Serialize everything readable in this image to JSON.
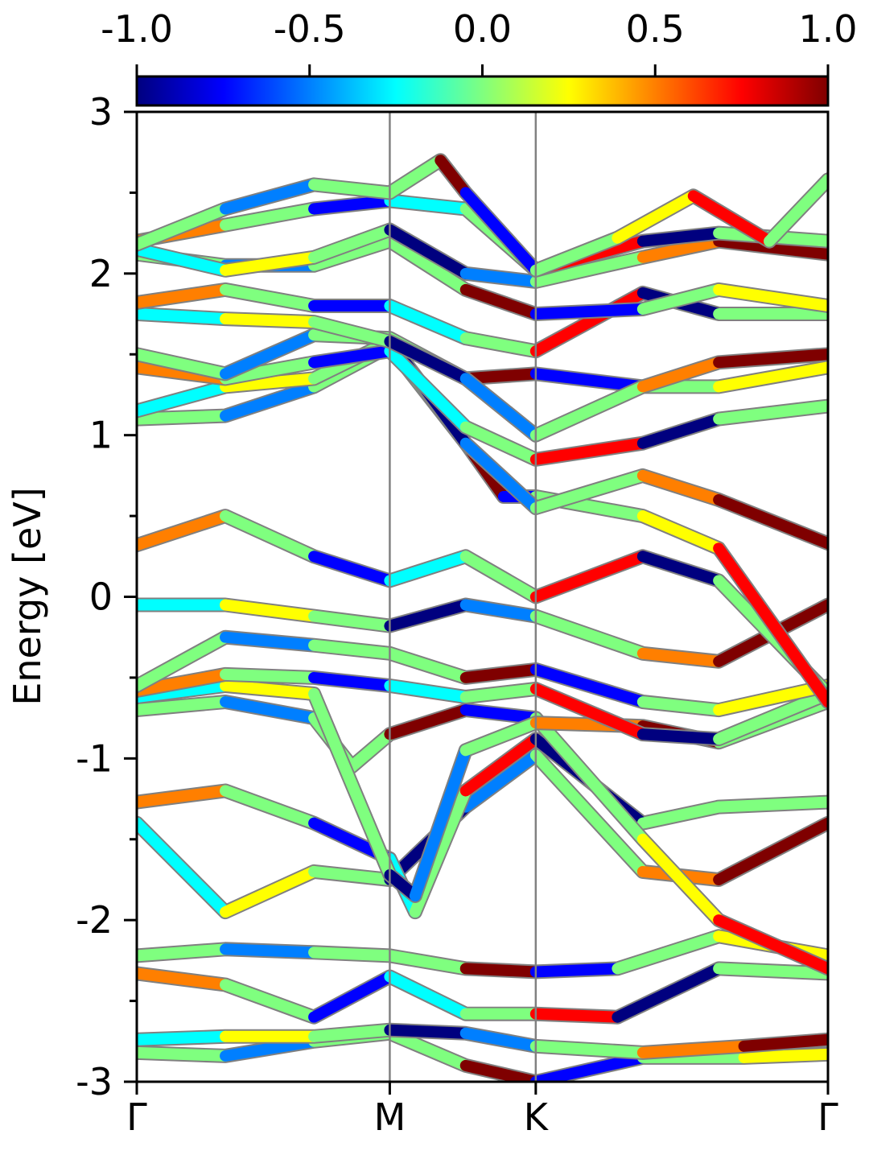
{
  "chart_data": {
    "type": "line",
    "title": "",
    "xlabel": "",
    "ylabel": "Energy [eV]",
    "ylim": [
      -3,
      3
    ],
    "y_ticks": [
      "-3",
      "-2",
      "-1",
      "0",
      "1",
      "2",
      "3"
    ],
    "x_ticks": [
      "Γ",
      "M",
      "K",
      "Γ"
    ],
    "x_tick_positions": [
      0,
      1,
      1.577,
      2.732
    ],
    "colorbar": {
      "range": [
        -1.0,
        1.0
      ],
      "ticks": [
        "-1.0",
        "-0.5",
        "0.0",
        "0.5",
        "1.0"
      ],
      "colormap": "jet",
      "colors": [
        "#00007f",
        "#0000ff",
        "#007fff",
        "#00ffff",
        "#7fff7f",
        "#ffff00",
        "#ff7f00",
        "#ff0000",
        "#7f0000"
      ]
    },
    "band_outline_color": "#808080",
    "series": [
      {
        "x": [
          0,
          0.35,
          0.7,
          1.0,
          1.3,
          1.577,
          2.0,
          2.4,
          2.732
        ],
        "y": [
          -2.82,
          -2.84,
          -2.75,
          -2.7,
          -2.9,
          -3.0,
          -2.85,
          -2.85,
          -2.83
        ]
      },
      {
        "x": [
          0,
          0.35,
          0.7,
          1.0,
          1.3,
          1.577,
          2.0,
          2.4,
          2.732
        ],
        "y": [
          -2.74,
          -2.72,
          -2.72,
          -2.68,
          -2.7,
          -2.78,
          -2.82,
          -2.78,
          -2.74
        ]
      },
      {
        "x": [
          0,
          0.35,
          0.7,
          1.0,
          1.3,
          1.577,
          1.9,
          2.3,
          2.732
        ],
        "y": [
          -2.33,
          -2.4,
          -2.6,
          -2.35,
          -2.58,
          -2.58,
          -2.6,
          -2.3,
          -2.33
        ]
      },
      {
        "x": [
          0,
          0.35,
          0.7,
          1.0,
          1.3,
          1.577,
          1.9,
          2.3,
          2.732
        ],
        "y": [
          -2.22,
          -2.18,
          -2.2,
          -2.22,
          -2.3,
          -2.32,
          -2.3,
          -2.1,
          -2.22
        ]
      },
      {
        "x": [
          0,
          0.35,
          0.7,
          1.0,
          1.3,
          1.577,
          2.0,
          2.3,
          2.732
        ],
        "y": [
          -1.4,
          -1.95,
          -1.7,
          -1.75,
          -1.3,
          -0.98,
          -1.7,
          -1.75,
          -1.4
        ]
      },
      {
        "x": [
          0,
          0.35,
          0.7,
          1.0,
          1.1,
          1.3,
          1.577,
          2.0,
          2.3,
          2.732
        ],
        "y": [
          -1.27,
          -1.2,
          -1.4,
          -1.62,
          -1.95,
          -1.2,
          -0.88,
          -1.4,
          -1.3,
          -1.27
        ]
      },
      {
        "x": [
          0,
          0.35,
          0.7,
          0.85,
          1.0,
          1.3,
          1.577,
          2.0,
          2.3,
          2.732
        ],
        "y": [
          -0.7,
          -0.65,
          -0.75,
          -1.05,
          -0.85,
          -0.7,
          -0.75,
          -1.5,
          -2.0,
          -2.3
        ]
      },
      {
        "x": [
          0,
          0.35,
          0.7,
          1.0,
          1.1,
          1.3,
          1.577,
          2.0,
          2.3,
          2.732
        ],
        "y": [
          -0.62,
          -0.55,
          -0.6,
          -1.72,
          -1.85,
          -0.95,
          -0.78,
          -0.8,
          -0.9,
          -0.65
        ]
      },
      {
        "x": [
          0,
          0.35,
          0.7,
          1.0,
          1.3,
          1.577,
          2.0,
          2.3,
          2.732
        ],
        "y": [
          -0.58,
          -0.48,
          -0.5,
          -0.55,
          -0.62,
          -0.57,
          -0.85,
          -0.88,
          -0.6
        ]
      },
      {
        "x": [
          0,
          0.35,
          0.7,
          1.0,
          1.3,
          1.577,
          2.0,
          2.3,
          2.732
        ],
        "y": [
          -0.55,
          -0.25,
          -0.3,
          -0.35,
          -0.5,
          -0.45,
          -0.65,
          -0.7,
          -0.55
        ]
      },
      {
        "x": [
          0,
          0.35,
          0.7,
          1.0,
          1.3,
          1.577,
          2.0,
          2.3,
          2.732
        ],
        "y": [
          -0.05,
          -0.05,
          -0.12,
          -0.18,
          -0.05,
          -0.12,
          -0.35,
          -0.4,
          -0.05
        ]
      },
      {
        "x": [
          0,
          0.35,
          0.7,
          1.0,
          1.3,
          1.577,
          2.0,
          2.3,
          2.732
        ],
        "y": [
          0.32,
          0.5,
          0.25,
          0.1,
          0.25,
          0.0,
          0.25,
          0.1,
          -0.6
        ]
      },
      {
        "x": [
          0,
          0.35,
          0.7,
          1.0,
          1.3,
          1.45,
          1.577,
          2.0,
          2.3,
          2.732
        ],
        "y": [
          1.1,
          1.12,
          1.3,
          1.55,
          0.95,
          0.62,
          0.62,
          0.5,
          0.3,
          -0.65
        ]
      },
      {
        "x": [
          0,
          0.35,
          0.7,
          1.0,
          1.3,
          1.577,
          2.0,
          2.3,
          2.732
        ],
        "y": [
          1.15,
          1.3,
          1.35,
          1.58,
          0.95,
          0.55,
          0.75,
          0.6,
          0.33
        ]
      },
      {
        "x": [
          0,
          0.35,
          0.7,
          1.0,
          1.3,
          1.577,
          2.0,
          2.3,
          2.732
        ],
        "y": [
          1.42,
          1.35,
          1.45,
          1.52,
          1.05,
          0.85,
          0.95,
          1.1,
          1.18
        ]
      },
      {
        "x": [
          0,
          0.35,
          0.7,
          1.0,
          1.3,
          1.577,
          2.0,
          2.3,
          2.732
        ],
        "y": [
          1.5,
          1.38,
          1.62,
          1.6,
          1.35,
          1.38,
          1.3,
          1.3,
          1.42
        ]
      },
      {
        "x": [
          0,
          0.35,
          0.7,
          1.0,
          1.3,
          1.577,
          2.0,
          2.3,
          2.732
        ],
        "y": [
          1.75,
          1.72,
          1.7,
          1.58,
          1.35,
          1.0,
          1.3,
          1.45,
          1.5
        ]
      },
      {
        "x": [
          0,
          0.35,
          0.7,
          1.0,
          1.3,
          1.577,
          2.0,
          2.3,
          2.732
        ],
        "y": [
          1.82,
          1.9,
          1.8,
          1.8,
          1.6,
          1.52,
          1.88,
          1.75,
          1.75
        ]
      },
      {
        "x": [
          0,
          0.35,
          0.7,
          1.0,
          1.3,
          1.577,
          2.0,
          2.3,
          2.732
        ],
        "y": [
          2.12,
          2.05,
          2.05,
          2.2,
          1.9,
          1.75,
          1.78,
          1.9,
          1.8
        ]
      },
      {
        "x": [
          0,
          0.35,
          0.7,
          1.0,
          1.3,
          1.577,
          2.0,
          2.3,
          2.732
        ],
        "y": [
          2.15,
          2.02,
          2.1,
          2.27,
          2.0,
          1.95,
          2.1,
          2.2,
          2.12
        ]
      },
      {
        "x": [
          0,
          0.35,
          0.7,
          1.0,
          1.3,
          1.577,
          2.0,
          2.3,
          2.732
        ],
        "y": [
          2.2,
          2.3,
          2.4,
          2.45,
          2.4,
          2.02,
          2.2,
          2.25,
          2.2
        ]
      },
      {
        "x": [
          0,
          0.35,
          0.7,
          1.0,
          1.2,
          1.3,
          1.577,
          1.9,
          2.2,
          2.5,
          2.732
        ],
        "y": [
          2.18,
          2.4,
          2.55,
          2.5,
          2.7,
          2.5,
          2.02,
          2.22,
          2.48,
          2.2,
          2.58
        ]
      }
    ]
  }
}
